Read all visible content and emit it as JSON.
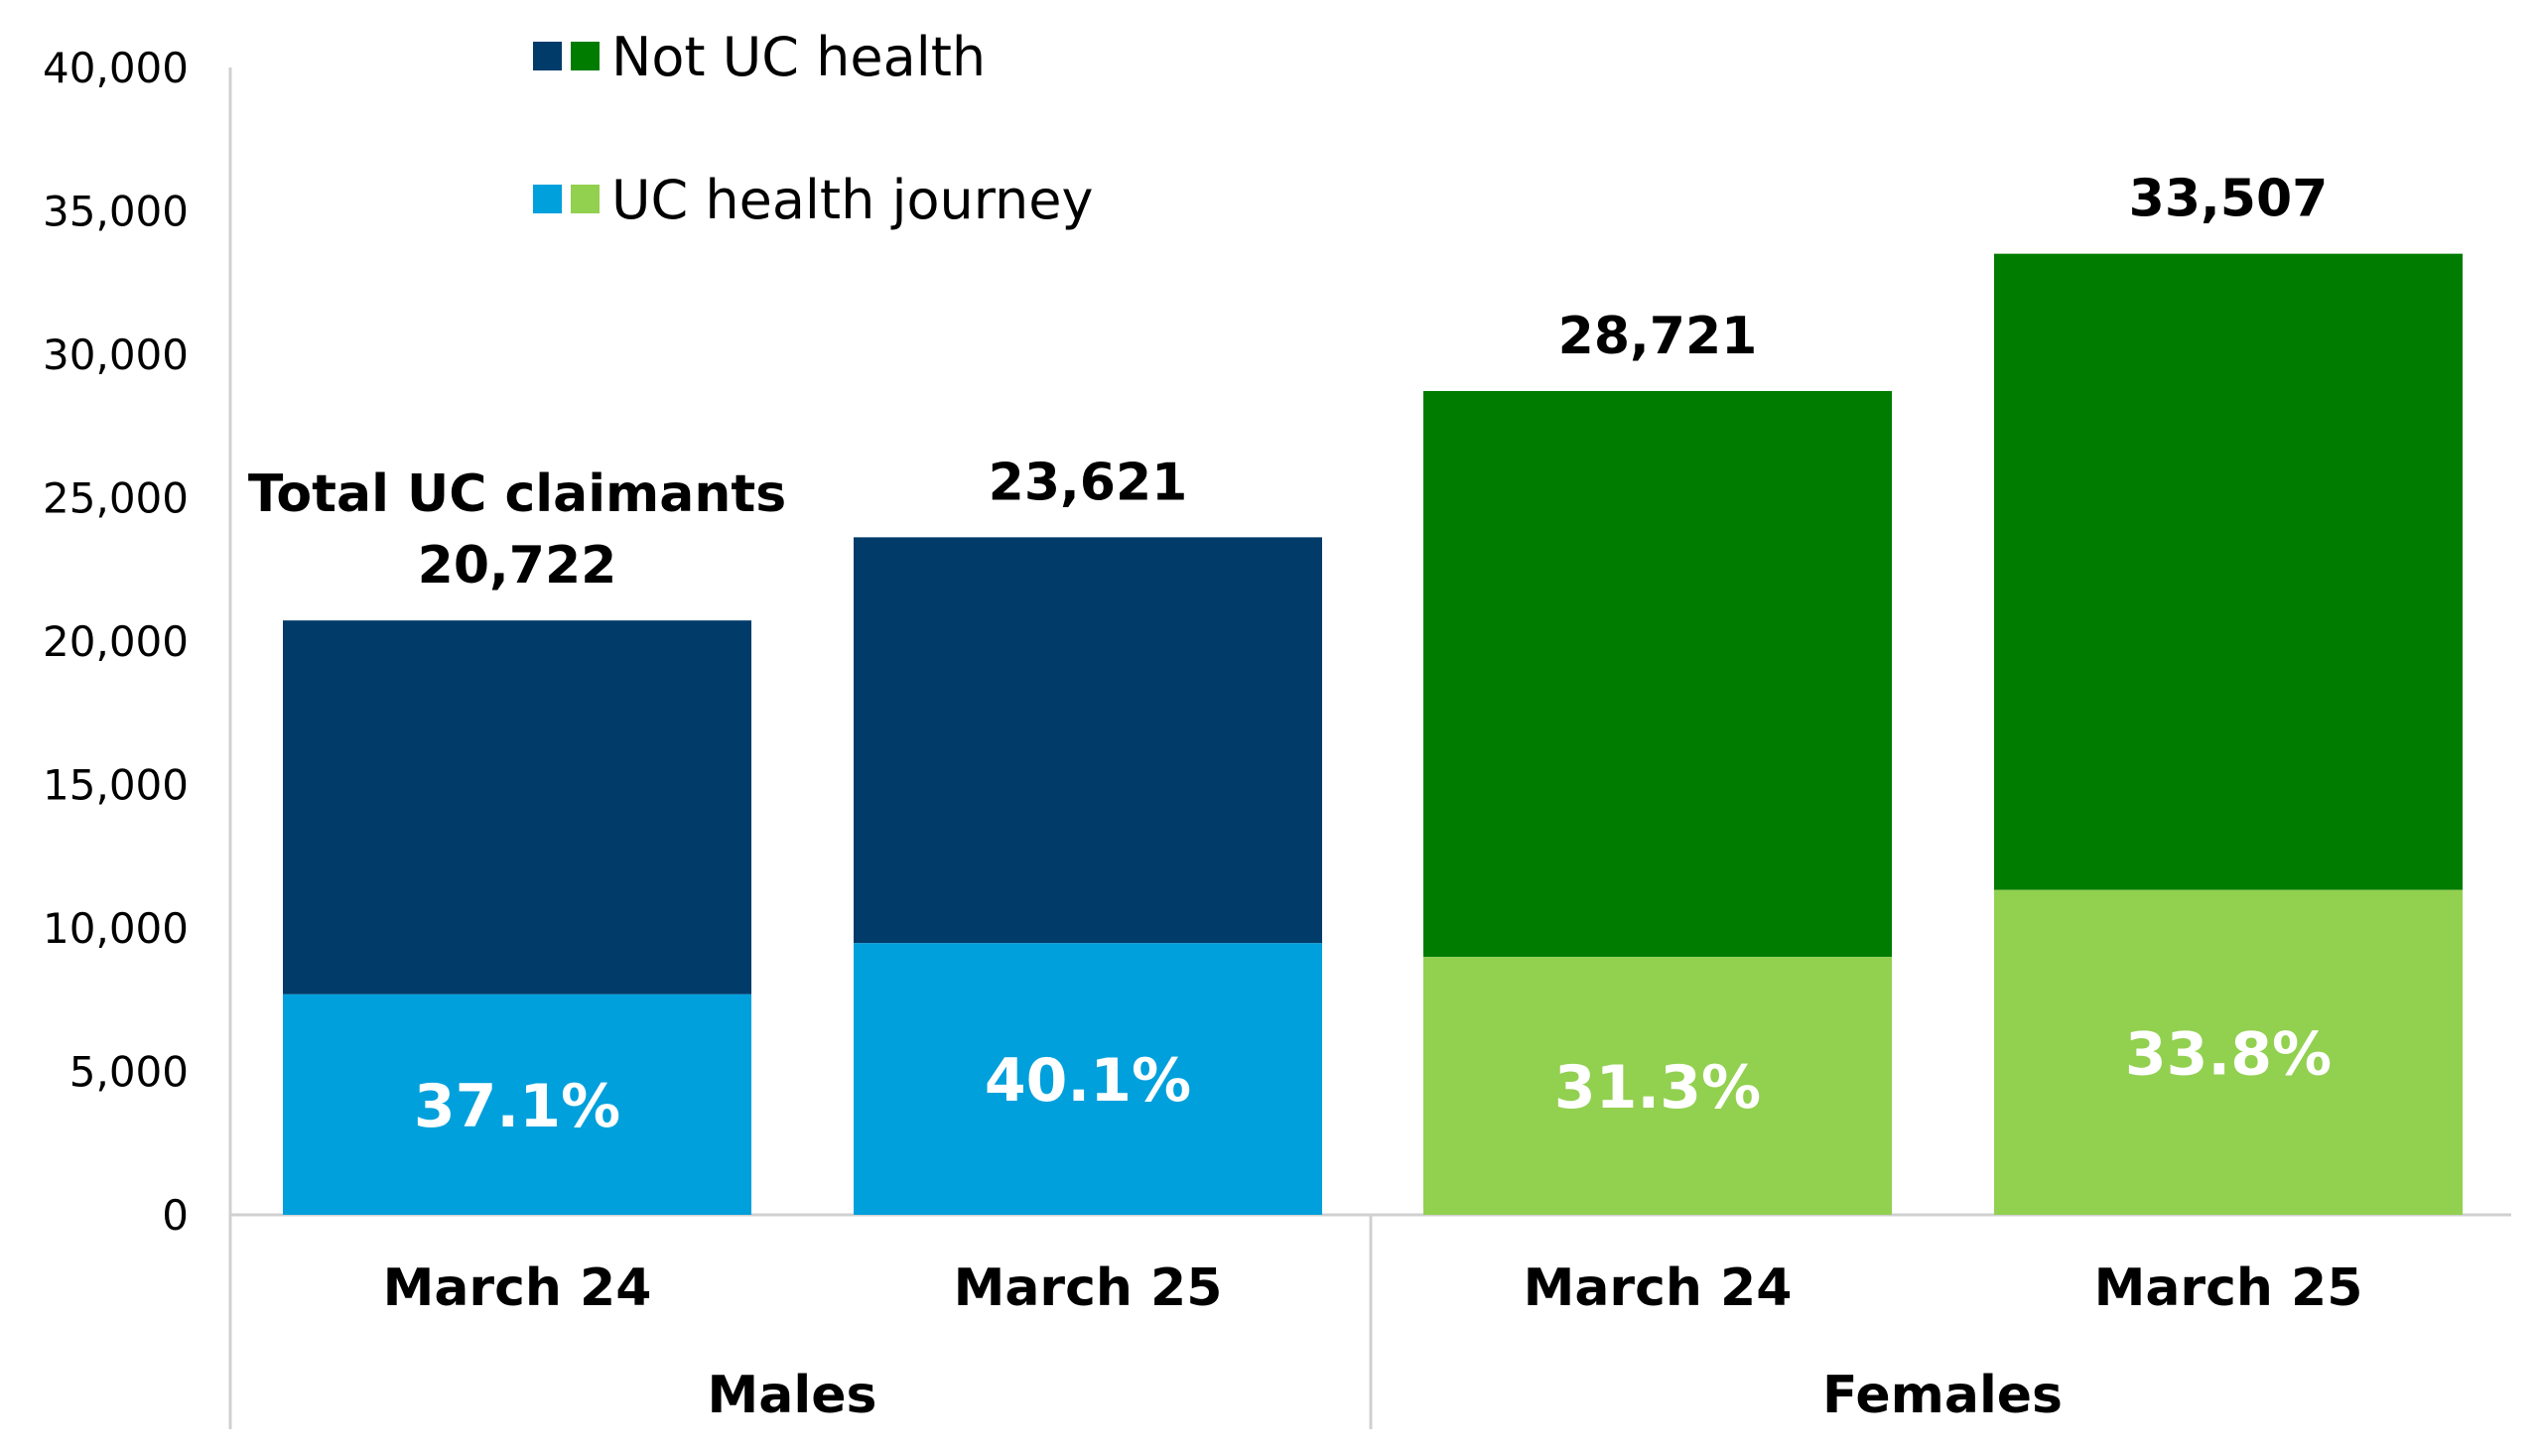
{
  "chart_data": {
    "type": "bar",
    "stacked": true,
    "ylim": [
      0,
      40000
    ],
    "yticks": [
      0,
      5000,
      10000,
      15000,
      20000,
      25000,
      30000,
      35000,
      40000
    ],
    "ytick_labels": [
      "0",
      "5,000",
      "10,000",
      "15,000",
      "20,000",
      "25,000",
      "30,000",
      "35,000",
      "40,000"
    ],
    "groups": [
      {
        "name": "Males",
        "color_not_health": "#003B6A",
        "color_health": "#00A0DC",
        "bars": [
          {
            "category": "March 24",
            "total": 20722,
            "total_label": "20,722",
            "total_prefix": "Total UC claimants",
            "health_pct": 37.1,
            "pct_label": "37.1%"
          },
          {
            "category": "March 25",
            "total": 23621,
            "total_label": "23,621",
            "health_pct": 40.1,
            "pct_label": "40.1%"
          }
        ]
      },
      {
        "name": "Females",
        "color_not_health": "#007C00",
        "color_health": "#92D050",
        "bars": [
          {
            "category": "March 24",
            "total": 28721,
            "total_label": "28,721",
            "health_pct": 31.3,
            "pct_label": "31.3%"
          },
          {
            "category": "March 25",
            "total": 33507,
            "total_label": "33,507",
            "health_pct": 33.8,
            "pct_label": "33.8%"
          }
        ]
      }
    ],
    "legend": [
      {
        "label": "Not UC health",
        "colors": [
          "#003B6A",
          "#007C00"
        ]
      },
      {
        "label": "UC health journey",
        "colors": [
          "#00A0DC",
          "#92D050"
        ]
      }
    ],
    "axis_color": "#D0D0D0"
  }
}
